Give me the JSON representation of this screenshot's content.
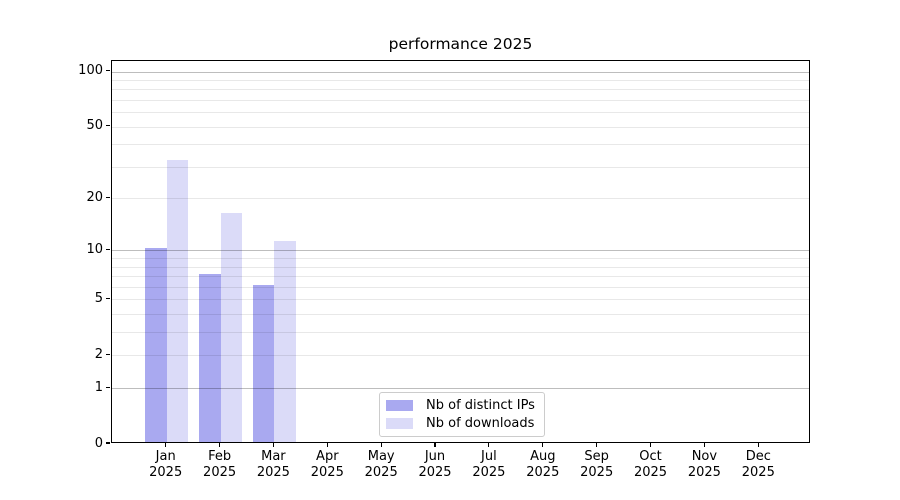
{
  "chart_data": {
    "type": "bar",
    "title": "performance 2025",
    "xlabel": "",
    "ylabel": "",
    "scale": "log1p",
    "ylim": [
      0,
      114
    ],
    "grid": "both",
    "legend_position": "lower center inside",
    "categories": [
      "Jan 2025",
      "Feb 2025",
      "Mar 2025",
      "Apr 2025",
      "May 2025",
      "Jun 2025",
      "Jul 2025",
      "Aug 2025",
      "Sep 2025",
      "Oct 2025",
      "Nov 2025",
      "Dec 2025"
    ],
    "x_tick_labels": [
      {
        "month": "Jan",
        "year": "2025"
      },
      {
        "month": "Feb",
        "year": "2025"
      },
      {
        "month": "Mar",
        "year": "2025"
      },
      {
        "month": "Apr",
        "year": "2025"
      },
      {
        "month": "May",
        "year": "2025"
      },
      {
        "month": "Jun",
        "year": "2025"
      },
      {
        "month": "Jul",
        "year": "2025"
      },
      {
        "month": "Aug",
        "year": "2025"
      },
      {
        "month": "Sep",
        "year": "2025"
      },
      {
        "month": "Oct",
        "year": "2025"
      },
      {
        "month": "Nov",
        "year": "2025"
      },
      {
        "month": "Dec",
        "year": "2025"
      }
    ],
    "y_ticks": [
      0,
      1,
      2,
      5,
      10,
      20,
      50,
      100
    ],
    "y_tick_labels": [
      "0",
      "1",
      "2",
      "5",
      "10",
      "20",
      "50",
      "100"
    ],
    "major_gridlines": [
      1,
      10,
      100
    ],
    "minor_gridlines": [
      2,
      3,
      4,
      5,
      6,
      7,
      8,
      9,
      20,
      30,
      40,
      50,
      60,
      70,
      80,
      90
    ],
    "series": [
      {
        "name": "Nb of distinct IPs",
        "color": "#a9a9f0",
        "values": [
          10,
          7,
          6,
          null,
          null,
          null,
          null,
          null,
          null,
          null,
          null,
          null
        ]
      },
      {
        "name": "Nb of downloads",
        "color": "#dbdbf8",
        "values": [
          32,
          16,
          11,
          null,
          null,
          null,
          null,
          null,
          null,
          null,
          null,
          null
        ]
      }
    ],
    "colors": {
      "spine": "#000000",
      "minor_grid": "#e8e8e8",
      "major_grid": "#bdbdbd",
      "legend_border": "#cccccc",
      "text": "#000000",
      "background": "#ffffff"
    }
  }
}
